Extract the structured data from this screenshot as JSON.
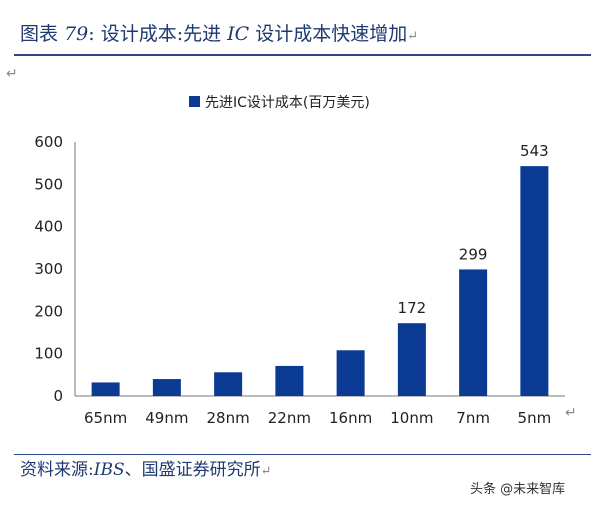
{
  "figure": {
    "label": "图表",
    "number": "79",
    "colon": ":",
    "title_a": "设计成本:先进",
    "title_ic": "IC",
    "title_b": "设计成本快速增加",
    "return_mark": "↵"
  },
  "source": {
    "prefix": "资料来源:",
    "inst": "IBS",
    "rest": "、国盛证券研究所"
  },
  "watermark": "头条 @未来智库",
  "colors": {
    "bar": "#0a3a94",
    "title": "#1f3a70",
    "rule": "#2d4a86"
  },
  "chart_data": {
    "type": "bar",
    "legend": "先进IC设计成本(百万美元)",
    "legend_position": "top-center",
    "categories": [
      "65nm",
      "49nm",
      "28nm",
      "22nm",
      "16nm",
      "10nm",
      "7nm",
      "5nm"
    ],
    "values": [
      32,
      40,
      56,
      71,
      108,
      172,
      299,
      543
    ],
    "data_labels": [
      "",
      "",
      "",
      "",
      "",
      "172",
      "299",
      "543"
    ],
    "yticks": [
      "0",
      "100",
      "200",
      "300",
      "400",
      "500",
      "600"
    ],
    "ylim": [
      0,
      600
    ],
    "grid": false
  }
}
